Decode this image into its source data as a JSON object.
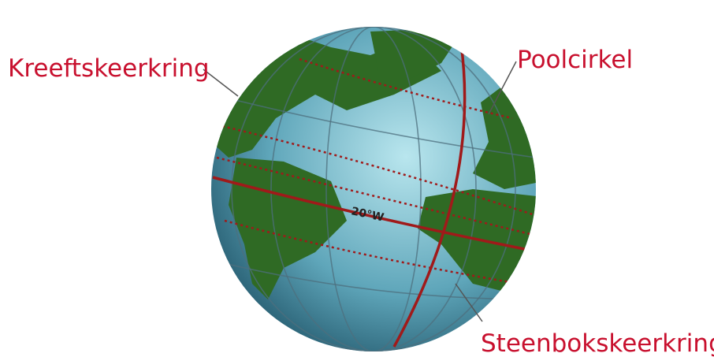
{
  "labels": {
    "tropic_of_cancer": "Kreeftskeerkring",
    "arctic_circle": "Poolcirkel",
    "tropic_of_capricorn": "Steenbokskeerkring"
  },
  "globe": {
    "meridian_label": "20°W"
  }
}
